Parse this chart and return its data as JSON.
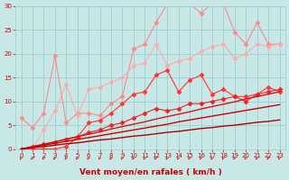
{
  "xlabel": "Vent moyen/en rafales ( km/h )",
  "background_color": "#c8e8e8",
  "grid_color": "#9ecece",
  "x": [
    0,
    1,
    2,
    3,
    4,
    5,
    6,
    7,
    8,
    9,
    10,
    11,
    12,
    13,
    14,
    15,
    16,
    17,
    18,
    19,
    20,
    21,
    22,
    23
  ],
  "series": [
    {
      "color": "#ff8888",
      "alpha": 1.0,
      "linewidth": 0.8,
      "marker": "D",
      "markersize": 2.5,
      "y": [
        6.5,
        4.5,
        7.5,
        19.5,
        5.5,
        7.5,
        7.5,
        7.0,
        9.5,
        11.0,
        21.0,
        22.0,
        26.5,
        30.5,
        30.5,
        30.5,
        28.5,
        30.5,
        30.5,
        24.5,
        22.0,
        26.5,
        22.0,
        22.0
      ]
    },
    {
      "color": "#ffaaaa",
      "alpha": 1.0,
      "linewidth": 0.8,
      "marker": "D",
      "markersize": 2.5,
      "y": [
        0,
        0,
        4.0,
        8.0,
        13.5,
        7.0,
        12.5,
        13.0,
        14.0,
        15.0,
        17.5,
        18.0,
        22.0,
        17.5,
        18.5,
        19.0,
        20.5,
        21.5,
        22.0,
        19.0,
        20.0,
        22.0,
        21.5,
        22.0
      ]
    },
    {
      "color": "#ff3333",
      "alpha": 1.0,
      "linewidth": 0.8,
      "marker": "D",
      "markersize": 2.5,
      "y": [
        0,
        0,
        0,
        0,
        0.5,
        2.5,
        5.5,
        6.0,
        7.5,
        9.5,
        11.5,
        12.0,
        15.5,
        16.5,
        12.0,
        14.5,
        15.5,
        11.5,
        12.5,
        11.0,
        11.0,
        11.5,
        13.0,
        12.0
      ]
    },
    {
      "color": "#ee2222",
      "alpha": 1.0,
      "linewidth": 0.8,
      "marker": "D",
      "markersize": 2.5,
      "y": [
        0,
        0.5,
        1.0,
        1.5,
        2.0,
        2.5,
        3.5,
        4.0,
        5.0,
        5.5,
        6.5,
        7.5,
        8.5,
        8.0,
        8.5,
        9.5,
        9.5,
        10.0,
        10.5,
        11.0,
        10.0,
        11.5,
        12.0,
        12.5
      ]
    },
    {
      "color": "#dd1111",
      "alpha": 1.0,
      "linewidth": 1.0,
      "marker": null,
      "markersize": 0,
      "y": [
        0,
        0.5,
        1.0,
        1.5,
        2.1,
        2.6,
        3.1,
        3.6,
        4.2,
        4.7,
        5.2,
        5.7,
        6.3,
        6.8,
        7.3,
        7.8,
        8.4,
        8.9,
        9.4,
        9.9,
        10.5,
        11.0,
        11.5,
        12.0
      ]
    },
    {
      "color": "#cc0000",
      "alpha": 1.0,
      "linewidth": 1.0,
      "marker": null,
      "markersize": 0,
      "y": [
        0,
        0.4,
        0.8,
        1.2,
        1.6,
        2.0,
        2.4,
        2.8,
        3.2,
        3.6,
        4.0,
        4.4,
        4.8,
        5.2,
        5.7,
        6.1,
        6.5,
        6.9,
        7.3,
        7.7,
        8.1,
        8.5,
        8.9,
        9.3
      ]
    },
    {
      "color": "#aa0000",
      "alpha": 1.0,
      "linewidth": 1.0,
      "marker": null,
      "markersize": 0,
      "y": [
        0,
        0.3,
        0.5,
        0.8,
        1.1,
        1.3,
        1.6,
        1.9,
        2.1,
        2.4,
        2.7,
        2.9,
        3.2,
        3.5,
        3.7,
        4.0,
        4.3,
        4.5,
        4.8,
        5.0,
        5.3,
        5.6,
        5.8,
        6.1
      ]
    }
  ],
  "xlim": [
    -0.5,
    23.5
  ],
  "ylim": [
    0,
    30
  ],
  "yticks": [
    0,
    5,
    10,
    15,
    20,
    25,
    30
  ],
  "xticks": [
    0,
    1,
    2,
    3,
    4,
    5,
    6,
    7,
    8,
    9,
    10,
    11,
    12,
    13,
    14,
    15,
    16,
    17,
    18,
    19,
    20,
    21,
    22,
    23
  ],
  "tick_color": "#cc0000",
  "label_color": "#cc0000",
  "tick_fontsize": 5.0,
  "xlabel_fontsize": 6.5,
  "arrow_color": "#cc2222"
}
